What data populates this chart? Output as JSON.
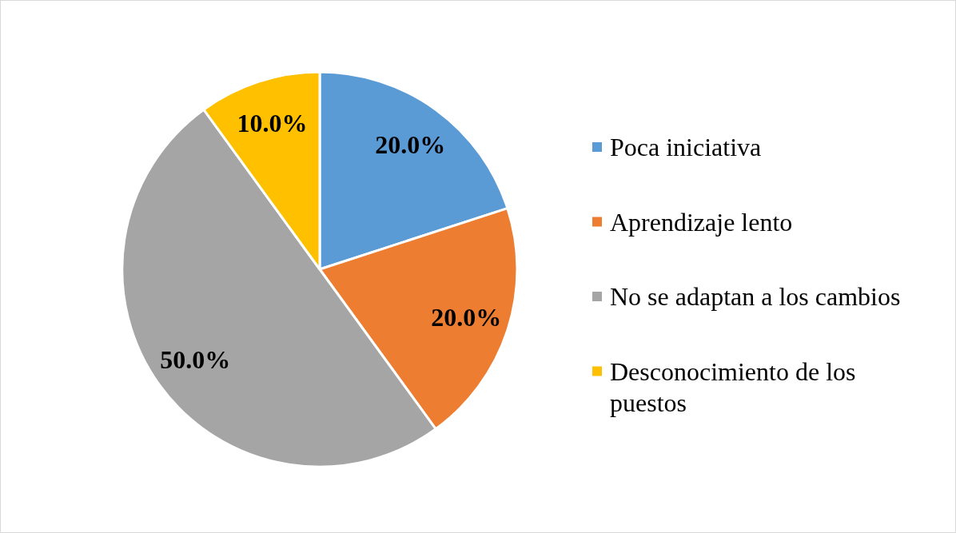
{
  "chart_data": {
    "type": "pie",
    "categories": [
      "Poca iniciativa",
      "Aprendizaje lento",
      "No se adaptan a los cambios",
      "Desconocimiento de los puestos"
    ],
    "values": [
      20,
      20,
      50,
      10
    ],
    "colors": [
      "#5b9bd5",
      "#ed7d31",
      "#a5a5a5",
      "#ffc000"
    ],
    "value_labels": [
      "20.0%",
      "20.0%",
      "50.0%",
      "10.0%"
    ],
    "legend": "right"
  }
}
